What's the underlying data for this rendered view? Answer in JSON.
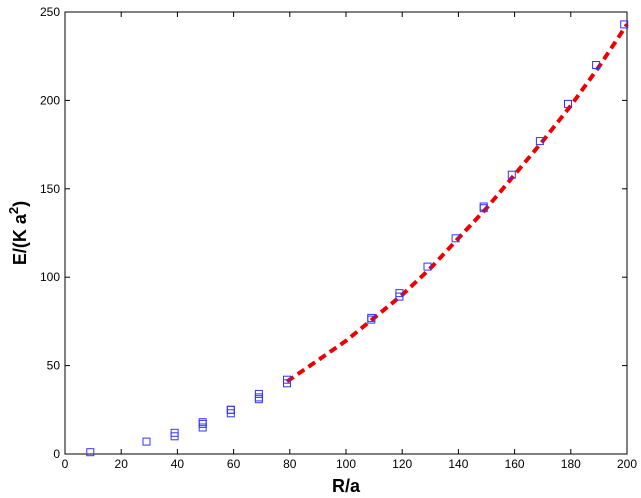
{
  "chart_data": {
    "type": "scatter",
    "xlabel": "R/a",
    "ylabel_main": "E/(K a",
    "ylabel_sup": "2",
    "ylabel_close": ")",
    "xlim": [
      0,
      200
    ],
    "ylim": [
      0,
      250
    ],
    "xticks": [
      0,
      20,
      40,
      60,
      80,
      100,
      120,
      140,
      160,
      180,
      200
    ],
    "yticks": [
      0,
      50,
      100,
      150,
      200,
      250
    ],
    "grid": false,
    "series": [
      {
        "marker": "square-open",
        "color": "#3333ff",
        "points": [
          [
            9,
            1
          ],
          [
            29,
            7
          ],
          [
            39,
            10
          ],
          [
            39,
            12
          ],
          [
            49,
            15
          ],
          [
            49,
            17
          ],
          [
            49,
            18
          ],
          [
            59,
            23
          ],
          [
            59,
            25
          ],
          [
            59,
            25
          ],
          [
            69,
            31
          ],
          [
            69,
            32
          ],
          [
            69,
            34
          ],
          [
            79,
            40
          ],
          [
            79,
            42
          ],
          [
            109,
            76
          ],
          [
            109,
            77
          ],
          [
            119,
            89
          ],
          [
            119,
            91
          ],
          [
            129,
            106
          ],
          [
            139,
            122
          ],
          [
            149,
            139
          ],
          [
            149,
            140
          ],
          [
            159,
            158
          ],
          [
            169,
            177
          ],
          [
            179,
            198
          ],
          [
            189,
            220
          ],
          [
            199,
            243
          ]
        ]
      },
      {
        "line": "dashed",
        "color": "#ee0000",
        "points": [
          [
            79,
            41
          ],
          [
            90,
            53
          ],
          [
            100,
            64
          ],
          [
            110,
            77
          ],
          [
            120,
            90
          ],
          [
            130,
            105
          ],
          [
            140,
            122
          ],
          [
            150,
            139
          ],
          [
            160,
            158
          ],
          [
            170,
            177
          ],
          [
            180,
            197
          ],
          [
            190,
            219
          ],
          [
            200,
            243
          ]
        ]
      }
    ]
  }
}
